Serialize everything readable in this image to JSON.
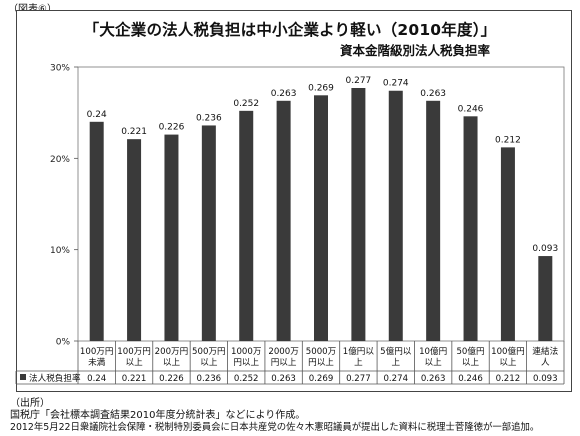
{
  "figure_label": "（図表⑥）",
  "title": "「大企業の法人税負担は中小企業より軽い（2010年度）」",
  "footer": {
    "source_heading": "（出所）",
    "line1": "国税庁「会社標本調査結果2010年度分統計表」などにより作成。",
    "line2": "2012年5月22日衆議院社会保障・税制特別委員会に日本共産党の佐々木憲昭議員が提出した資料に税理士菅隆徳が一部追加。"
  },
  "chart_data": {
    "type": "bar",
    "title": "資本金階級別法人税負担率",
    "categories": [
      [
        "100万円",
        "未満"
      ],
      [
        "100万円",
        "以上"
      ],
      [
        "200万円",
        "以上"
      ],
      [
        "500万円",
        "以上"
      ],
      [
        "1000万",
        "円以上"
      ],
      [
        "2000万",
        "円以上"
      ],
      [
        "5000万",
        "円以上"
      ],
      [
        "1億円以",
        "上"
      ],
      [
        "5億円以",
        "上"
      ],
      [
        "10億円",
        "以上"
      ],
      [
        "50億円",
        "以上"
      ],
      [
        "100億円",
        "以上"
      ],
      [
        "連結法",
        "人"
      ]
    ],
    "series": [
      {
        "name": "法人税負担率",
        "values": [
          0.24,
          0.221,
          0.226,
          0.236,
          0.252,
          0.263,
          0.269,
          0.277,
          0.274,
          0.263,
          0.246,
          0.212,
          0.093
        ],
        "labels": [
          "0.24",
          "0.221",
          "0.226",
          "0.236",
          "0.252",
          "0.263",
          "0.269",
          "0.277",
          "0.274",
          "0.263",
          "0.246",
          "0.212",
          "0.093"
        ]
      }
    ],
    "yticks": [
      "0%",
      "10%",
      "20%",
      "30%"
    ],
    "ylim": [
      0,
      0.3
    ],
    "bar_color": "#3a3a3a",
    "grid": false,
    "legend": "data-table-below"
  }
}
